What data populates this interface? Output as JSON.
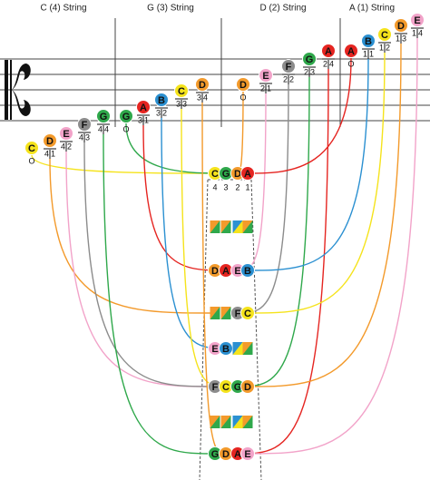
{
  "strings": [
    {
      "name": "C (4) String",
      "notes": [
        {
          "note": "C",
          "fingering": [
            "O"
          ]
        },
        {
          "note": "D",
          "fingering": [
            "4",
            "1"
          ]
        },
        {
          "note": "E",
          "fingering": [
            "4",
            "2"
          ]
        },
        {
          "note": "F",
          "fingering": [
            "4",
            "3"
          ]
        },
        {
          "note": "G",
          "fingering": [
            "4",
            "4"
          ]
        }
      ]
    },
    {
      "name": "G (3) String",
      "notes": [
        {
          "note": "G",
          "fingering": [
            "O"
          ]
        },
        {
          "note": "A",
          "fingering": [
            "3",
            "1"
          ]
        },
        {
          "note": "B",
          "fingering": [
            "3",
            "2"
          ]
        },
        {
          "note": "C",
          "fingering": [
            "3",
            "3"
          ]
        },
        {
          "note": "D",
          "fingering": [
            "3",
            "4"
          ]
        }
      ]
    },
    {
      "name": "D (2) String",
      "notes": [
        {
          "note": "D",
          "fingering": [
            "O"
          ]
        },
        {
          "note": "E",
          "fingering": [
            "2",
            "1"
          ]
        },
        {
          "note": "F",
          "fingering": [
            "2",
            "2"
          ]
        },
        {
          "note": "G",
          "fingering": [
            "2",
            "3"
          ]
        },
        {
          "note": "A",
          "fingering": [
            "2",
            "4"
          ]
        }
      ]
    },
    {
      "name": "A (1) String",
      "notes": [
        {
          "note": "A",
          "fingering": [
            "O"
          ]
        },
        {
          "note": "B",
          "fingering": [
            "1",
            "1"
          ]
        },
        {
          "note": "C",
          "fingering": [
            "1",
            "2"
          ]
        },
        {
          "note": "D",
          "fingering": [
            "1",
            "3"
          ]
        },
        {
          "note": "E",
          "fingering": [
            "1",
            "4"
          ]
        }
      ]
    }
  ],
  "fingerboard": {
    "top_notes": [
      "C",
      "G",
      "D",
      "A"
    ],
    "string_numbers": [
      "4",
      "3",
      "2",
      "1"
    ],
    "rows": [
      [
        "D",
        "A",
        "E",
        "B"
      ],
      [
        null,
        null,
        "F",
        "C"
      ],
      [
        "E",
        "B",
        null,
        null
      ],
      [
        "F",
        "C",
        "G",
        "D"
      ],
      [
        "G",
        "D",
        "A",
        "E"
      ]
    ]
  },
  "note_colors": {
    "C": "#f5e31c",
    "D": "#f39a2b",
    "E": "#f2a3c9",
    "F": "#8c8c8c",
    "G": "#2fa84b",
    "A": "#e52521",
    "B": "#2b90d1"
  }
}
